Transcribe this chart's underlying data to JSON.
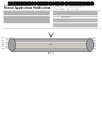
{
  "bg_color": "#ffffff",
  "barcode_color": "#111111",
  "text_color": "#444444",
  "mid_gray": "#888888",
  "dark_gray": "#555555",
  "diagram_bg": "#e0e0e0",
  "diagram_strip_top": "#b0b0b0",
  "diagram_strip_center": "#d0c8b8",
  "diagram_strip_bot": "#b0b0b0",
  "diagram_endcap": "#a0a0a0",
  "label_color": "#333333",
  "header_left": "United States",
  "header_pub": "Patent Application Publication",
  "pub_no": "Pub. No.: US 2009/0317113 A1",
  "pub_date": "Pub. Date:   Jan. 29, 2009",
  "separator_color": "#aaaaaa",
  "abstract_line_color": "#999999",
  "fig_label": "FIG. 1",
  "top_label": "100",
  "left_labels": [
    "102",
    "104",
    "106",
    "108",
    "110",
    "112"
  ],
  "right_labels": [
    "114",
    "116",
    "118",
    "120",
    "122",
    "124"
  ],
  "center_label": "126"
}
